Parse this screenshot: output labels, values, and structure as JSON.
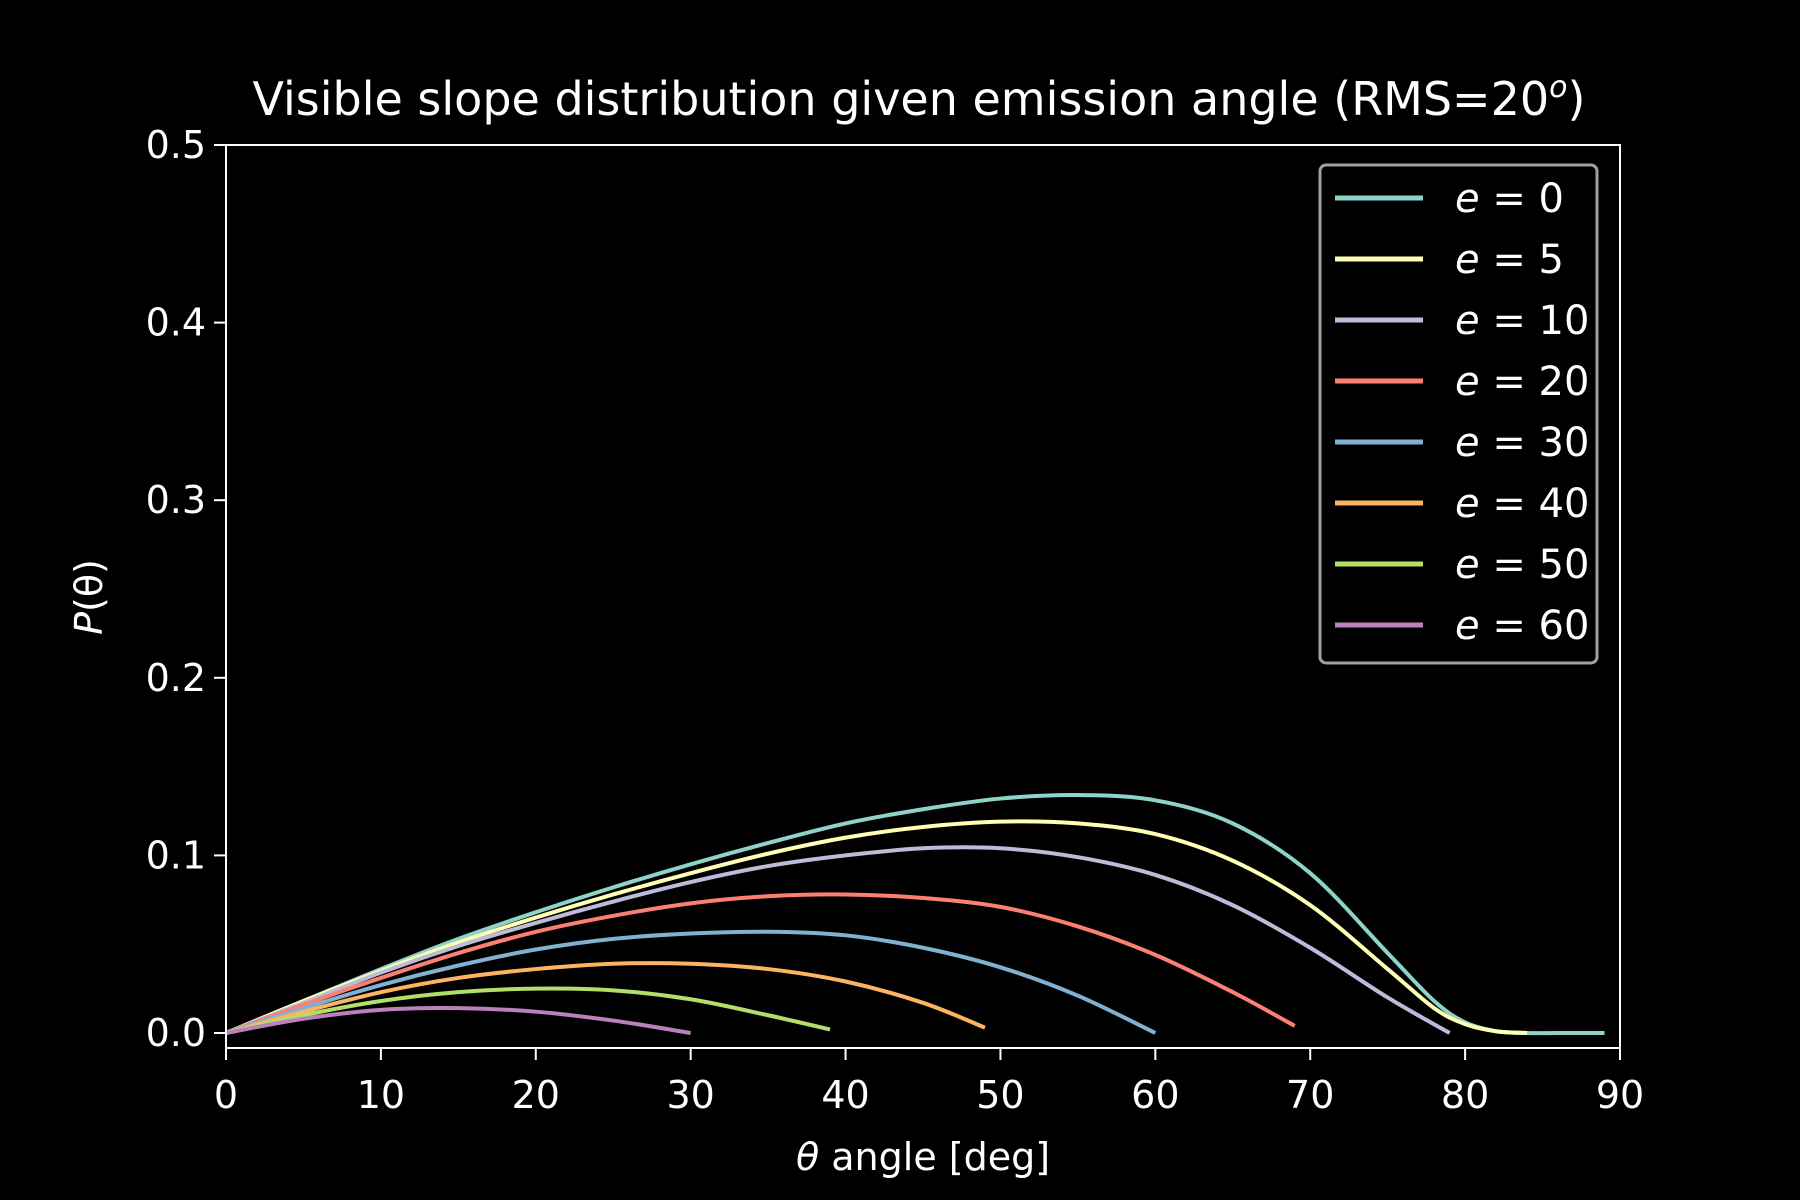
{
  "chart_data": {
    "type": "line",
    "title": "Visible slope distribution given emission angle (RMS=20",
    "title_sup": "o",
    "title_close": ")",
    "xlabel_symbol": "θ",
    "xlabel": " angle [deg]",
    "ylabel_symbol": "P",
    "ylabel_arg": "(θ)",
    "xlim": [
      0,
      90
    ],
    "ylim": [
      0,
      0.5
    ],
    "xticks": [
      0,
      10,
      20,
      30,
      40,
      50,
      60,
      70,
      80,
      90
    ],
    "yticks": [
      0.0,
      0.1,
      0.2,
      0.3,
      0.4,
      0.5
    ],
    "ytick_labels": [
      "0.0",
      "0.1",
      "0.2",
      "0.3",
      "0.4",
      "0.5"
    ],
    "background": "#000000",
    "legend_position": "top-right",
    "series": [
      {
        "name": "e = 0",
        "sym": "e",
        "val": "0",
        "color": "#8dd3c7",
        "x": [
          0,
          5,
          10,
          15,
          20,
          25,
          30,
          35,
          40,
          45,
          50,
          55,
          60,
          65,
          70,
          75,
          78,
          80,
          82,
          84,
          86,
          89
        ],
        "y": [
          0.0,
          0.018,
          0.036,
          0.053,
          0.068,
          0.082,
          0.095,
          0.107,
          0.118,
          0.126,
          0.132,
          0.134,
          0.131,
          0.118,
          0.09,
          0.045,
          0.018,
          0.006,
          0.001,
          0.0,
          0.0,
          0.0
        ]
      },
      {
        "name": "e = 5",
        "sym": "e",
        "val": "5",
        "color": "#ffffb3",
        "x": [
          0,
          5,
          10,
          15,
          20,
          25,
          30,
          35,
          40,
          45,
          50,
          55,
          60,
          65,
          70,
          75,
          78,
          80,
          82,
          84
        ],
        "y": [
          0.0,
          0.018,
          0.035,
          0.051,
          0.065,
          0.078,
          0.09,
          0.101,
          0.11,
          0.116,
          0.119,
          0.118,
          0.112,
          0.097,
          0.072,
          0.036,
          0.014,
          0.005,
          0.001,
          0.0
        ]
      },
      {
        "name": "e = 10",
        "sym": "e",
        "val": "10",
        "color": "#bebada",
        "x": [
          0,
          5,
          10,
          15,
          20,
          25,
          30,
          35,
          40,
          45,
          50,
          55,
          60,
          65,
          70,
          75,
          79
        ],
        "y": [
          0.0,
          0.017,
          0.034,
          0.049,
          0.062,
          0.074,
          0.085,
          0.094,
          0.1,
          0.104,
          0.104,
          0.099,
          0.089,
          0.072,
          0.048,
          0.02,
          0.0
        ]
      },
      {
        "name": "e = 20",
        "sym": "e",
        "val": "20",
        "color": "#fb8072",
        "x": [
          0,
          5,
          10,
          15,
          20,
          25,
          30,
          35,
          40,
          45,
          50,
          55,
          60,
          65,
          69
        ],
        "y": [
          0.0,
          0.016,
          0.031,
          0.045,
          0.057,
          0.066,
          0.073,
          0.077,
          0.078,
          0.076,
          0.071,
          0.06,
          0.044,
          0.023,
          0.004
        ]
      },
      {
        "name": "e = 30",
        "sym": "e",
        "val": "30",
        "color": "#80b1d3",
        "x": [
          0,
          5,
          10,
          15,
          20,
          25,
          30,
          35,
          40,
          45,
          50,
          55,
          60
        ],
        "y": [
          0.0,
          0.014,
          0.027,
          0.038,
          0.047,
          0.053,
          0.056,
          0.057,
          0.055,
          0.048,
          0.037,
          0.021,
          0.0
        ]
      },
      {
        "name": "e = 40",
        "sym": "e",
        "val": "40",
        "color": "#fdb462",
        "x": [
          0,
          5,
          10,
          15,
          20,
          25,
          30,
          35,
          40,
          45,
          49
        ],
        "y": [
          0.0,
          0.012,
          0.023,
          0.031,
          0.036,
          0.039,
          0.039,
          0.036,
          0.029,
          0.017,
          0.003
        ]
      },
      {
        "name": "e = 50",
        "sym": "e",
        "val": "50",
        "color": "#b3de69",
        "x": [
          0,
          5,
          10,
          15,
          20,
          25,
          30,
          35,
          39
        ],
        "y": [
          0.0,
          0.01,
          0.018,
          0.023,
          0.025,
          0.024,
          0.019,
          0.01,
          0.002
        ]
      },
      {
        "name": "e = 60",
        "sym": "e",
        "val": "60",
        "color": "#bc80bd",
        "x": [
          0,
          5,
          10,
          15,
          20,
          25,
          30
        ],
        "y": [
          0.0,
          0.008,
          0.013,
          0.014,
          0.012,
          0.007,
          0.0
        ]
      }
    ]
  }
}
